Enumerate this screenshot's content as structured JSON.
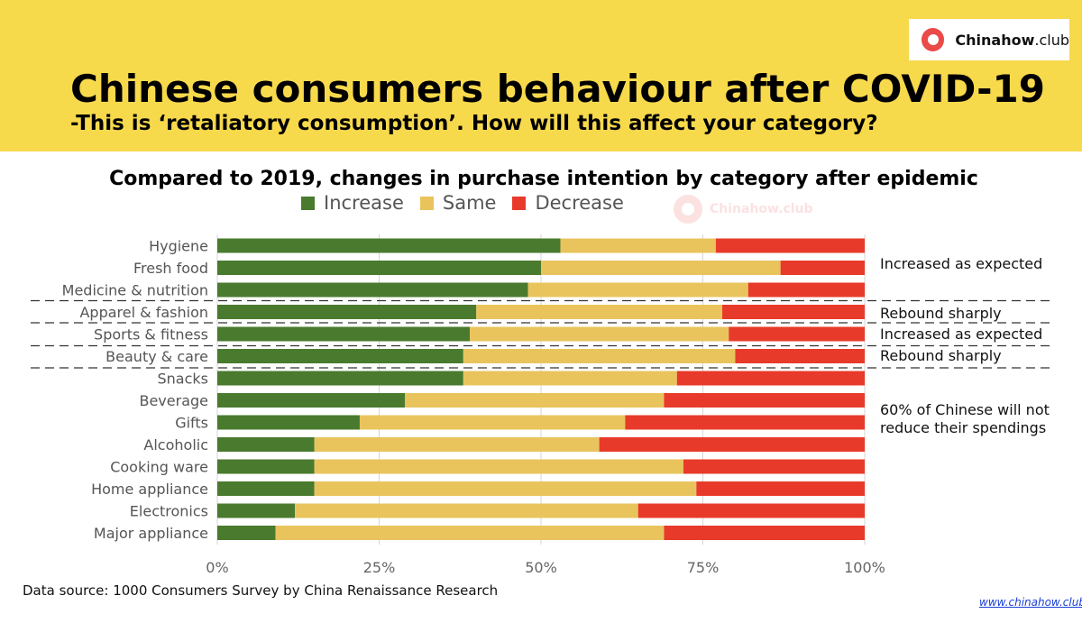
{
  "brand": {
    "logo_name": "Chinahow",
    "logo_suffix": ".club",
    "website": "www.chinahow.club"
  },
  "header": {
    "title": "Chinese consumers behaviour after COVID-19",
    "subtitle": "-This is ‘retaliatory consumption’. How will this affect your category?"
  },
  "colors": {
    "increase": "#4a7a2e",
    "same": "#e9c45c",
    "decrease": "#e83a2a",
    "banner": "#f7d94c",
    "brand": "#ea4a48"
  },
  "chart_data": {
    "type": "bar",
    "orientation": "horizontal",
    "stacked": true,
    "title": "Compared to 2019, changes in purchase intention by category after epidemic",
    "categories": [
      "Hygiene",
      "Fresh food",
      "Medicine & nutrition",
      "Apparel & fashion",
      "Sports & fitness",
      "Beauty & care",
      "Snacks",
      "Beverage",
      "Gifts",
      "Alcoholic",
      "Cooking ware",
      "Home appliance",
      "Electronics",
      "Major appliance"
    ],
    "series": [
      {
        "name": "Increase",
        "values": [
          53,
          50,
          48,
          40,
          39,
          38,
          38,
          29,
          22,
          15,
          15,
          15,
          12,
          9
        ]
      },
      {
        "name": "Same",
        "values": [
          24,
          37,
          34,
          38,
          40,
          42,
          33,
          40,
          41,
          44,
          57,
          59,
          53,
          60
        ]
      },
      {
        "name": "Decrease",
        "values": [
          23,
          13,
          18,
          22,
          21,
          20,
          29,
          31,
          37,
          41,
          28,
          26,
          35,
          31
        ]
      }
    ],
    "xlim": [
      0,
      100
    ],
    "xticks": [
      "0%",
      "25%",
      "50%",
      "75%",
      "100%"
    ],
    "grid": true,
    "legend": "top",
    "annotations": [
      {
        "text": "Increased as expected"
      },
      {
        "text": "Rebound sharply"
      },
      {
        "text": "Increased as expected"
      },
      {
        "text": "Rebound sharply"
      },
      {
        "text": "60% of Chinese will not reduce their spendings"
      }
    ],
    "source": "Data source: 1000 Consumers Survey by China Renaissance Research"
  }
}
